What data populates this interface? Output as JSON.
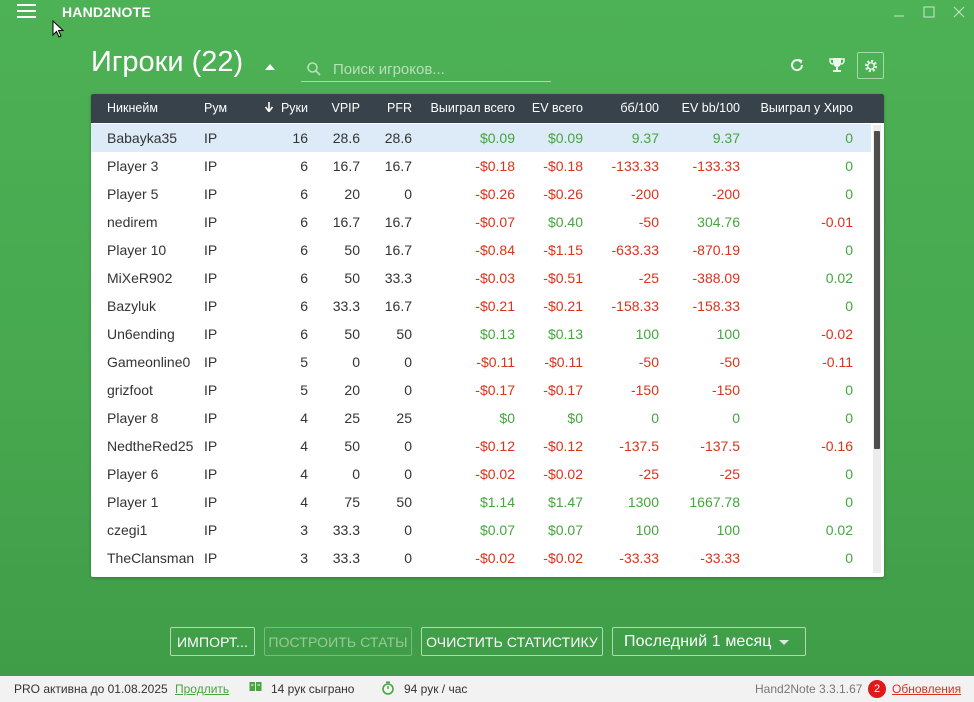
{
  "app": {
    "title": "HAND2NOTE",
    "version": "Hand2Note 3.3.1.67"
  },
  "header": {
    "title": "Игроки (22)",
    "search_placeholder": "Поиск игроков..."
  },
  "table": {
    "columns": [
      "Никнейм",
      "Рум",
      "Руки",
      "VPIP",
      "PFR",
      "Выиграл всего",
      "EV всего",
      "бб/100",
      "EV bb/100",
      "Выиграл у Хиро"
    ],
    "sort_column": "Руки",
    "rows": [
      {
        "nick": "Babayka35",
        "room": "IP",
        "hands": "16",
        "vpip": "28.6",
        "pfr": "28.6",
        "won": "$0.09",
        "ev": "$0.09",
        "bb": "9.37",
        "evbb": "9.37",
        "hero": "0",
        "selected": true
      },
      {
        "nick": "Player 3",
        "room": "IP",
        "hands": "6",
        "vpip": "16.7",
        "pfr": "16.7",
        "won": "-$0.18",
        "ev": "-$0.18",
        "bb": "-133.33",
        "evbb": "-133.33",
        "hero": "0"
      },
      {
        "nick": "Player 5",
        "room": "IP",
        "hands": "6",
        "vpip": "20",
        "pfr": "0",
        "won": "-$0.26",
        "ev": "-$0.26",
        "bb": "-200",
        "evbb": "-200",
        "hero": "0"
      },
      {
        "nick": "nedirem",
        "room": "IP",
        "hands": "6",
        "vpip": "16.7",
        "pfr": "16.7",
        "won": "-$0.07",
        "ev": "$0.40",
        "bb": "-50",
        "evbb": "304.76",
        "hero": "-0.01"
      },
      {
        "nick": "Player 10",
        "room": "IP",
        "hands": "6",
        "vpip": "50",
        "pfr": "16.7",
        "won": "-$0.84",
        "ev": "-$1.15",
        "bb": "-633.33",
        "evbb": "-870.19",
        "hero": "0"
      },
      {
        "nick": "MiXeR902",
        "room": "IP",
        "hands": "6",
        "vpip": "50",
        "pfr": "33.3",
        "won": "-$0.03",
        "ev": "-$0.51",
        "bb": "-25",
        "evbb": "-388.09",
        "hero": "0.02"
      },
      {
        "nick": "Bazyluk",
        "room": "IP",
        "hands": "6",
        "vpip": "33.3",
        "pfr": "16.7",
        "won": "-$0.21",
        "ev": "-$0.21",
        "bb": "-158.33",
        "evbb": "-158.33",
        "hero": "0"
      },
      {
        "nick": "Un6ending",
        "room": "IP",
        "hands": "6",
        "vpip": "50",
        "pfr": "50",
        "won": "$0.13",
        "ev": "$0.13",
        "bb": "100",
        "evbb": "100",
        "hero": "-0.02"
      },
      {
        "nick": "Gameonline0",
        "room": "IP",
        "hands": "5",
        "vpip": "0",
        "pfr": "0",
        "won": "-$0.11",
        "ev": "-$0.11",
        "bb": "-50",
        "evbb": "-50",
        "hero": "-0.11"
      },
      {
        "nick": "grizfoot",
        "room": "IP",
        "hands": "5",
        "vpip": "20",
        "pfr": "0",
        "won": "-$0.17",
        "ev": "-$0.17",
        "bb": "-150",
        "evbb": "-150",
        "hero": "0"
      },
      {
        "nick": "Player 8",
        "room": "IP",
        "hands": "4",
        "vpip": "25",
        "pfr": "25",
        "won": "$0",
        "ev": "$0",
        "bb": "0",
        "evbb": "0",
        "hero": "0"
      },
      {
        "nick": "NedtheRed25",
        "room": "IP",
        "hands": "4",
        "vpip": "50",
        "pfr": "0",
        "won": "-$0.12",
        "ev": "-$0.12",
        "bb": "-137.5",
        "evbb": "-137.5",
        "hero": "-0.16"
      },
      {
        "nick": "Player 6",
        "room": "IP",
        "hands": "4",
        "vpip": "0",
        "pfr": "0",
        "won": "-$0.02",
        "ev": "-$0.02",
        "bb": "-25",
        "evbb": "-25",
        "hero": "0"
      },
      {
        "nick": "Player 1",
        "room": "IP",
        "hands": "4",
        "vpip": "75",
        "pfr": "50",
        "won": "$1.14",
        "ev": "$1.47",
        "bb": "1300",
        "evbb": "1667.78",
        "hero": "0"
      },
      {
        "nick": "czegi1",
        "room": "IP",
        "hands": "3",
        "vpip": "33.3",
        "pfr": "0",
        "won": "$0.07",
        "ev": "$0.07",
        "bb": "100",
        "evbb": "100",
        "hero": "0.02"
      },
      {
        "nick": "TheClansman",
        "room": "IP",
        "hands": "3",
        "vpip": "33.3",
        "pfr": "0",
        "won": "-$0.02",
        "ev": "-$0.02",
        "bb": "-33.33",
        "evbb": "-33.33",
        "hero": "0"
      }
    ]
  },
  "buttons": {
    "import": "ИМПОРТ...",
    "build_stats": "ПОСТРОИТЬ СТАТЫ",
    "clear_stats": "ОЧИСТИТЬ СТАТИСТИКУ",
    "period": "Последний 1 месяц"
  },
  "status": {
    "pro": "PRO активна до 01.08.2025",
    "renew": "Продлить",
    "hands_played": "14 рук сыграно",
    "hands_per_hour": "94 рук / час",
    "updates_count": "2",
    "updates": "Обновления"
  },
  "colors": {
    "background": "#47a84f",
    "header_bg": "#37424a",
    "positive": "#44a63c",
    "negative": "#d9331c",
    "selected_row": "#dcebf7",
    "badge": "#e01919"
  },
  "icons": [
    "menu-icon",
    "minimize-icon",
    "maximize-icon",
    "close-icon",
    "search-icon",
    "refresh-icon",
    "trophy-icon",
    "gear-icon",
    "sort-down-icon",
    "book-icon",
    "stopwatch-icon"
  ]
}
